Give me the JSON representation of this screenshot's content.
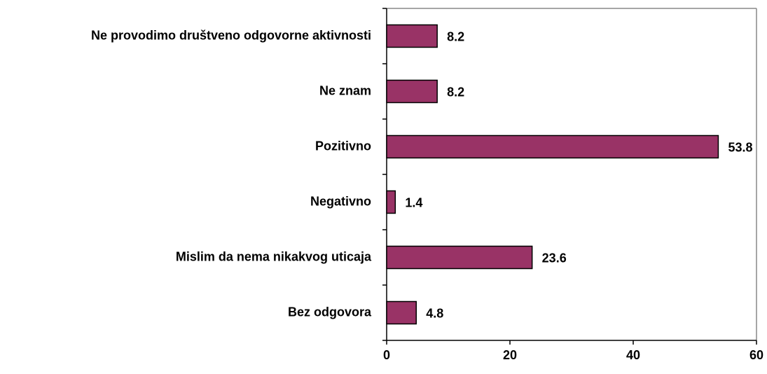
{
  "chart_data": {
    "type": "bar",
    "orientation": "horizontal",
    "categories": [
      "Ne provodimo društveno odgovorne aktivnosti",
      "Ne znam",
      "Pozitivno",
      "Negativno",
      "Mislim da nema nikakvog uticaja",
      "Bez odgovora"
    ],
    "values": [
      8.2,
      8.2,
      53.8,
      1.4,
      23.6,
      4.8
    ],
    "color": "#993366",
    "xlim": [
      0,
      60
    ],
    "xticks": [
      0,
      20,
      40,
      60
    ],
    "grid": false
  }
}
